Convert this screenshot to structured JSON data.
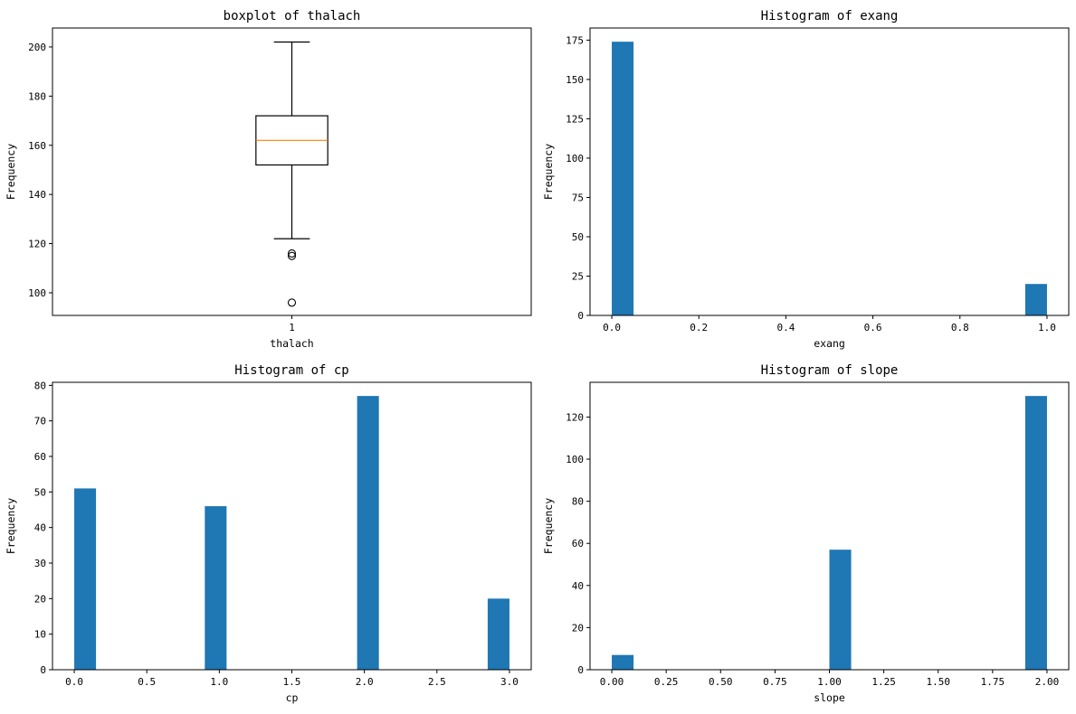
{
  "chart_data": [
    {
      "type": "box",
      "title": "boxplot of thalach",
      "xlabel": "thalach",
      "ylabel": "Frequency",
      "categories": [
        "1"
      ],
      "box": {
        "min": 122,
        "q1": 152,
        "median": 162,
        "q3": 172,
        "max": 202,
        "outliers": [
          116,
          115,
          96
        ]
      },
      "ylim": [
        90.8,
        207.7
      ],
      "yticks": [
        100,
        120,
        140,
        160,
        180,
        200
      ],
      "colors": {
        "box": "#000000",
        "median": "#ff7f0e"
      }
    },
    {
      "type": "bar",
      "title": "Histogram of exang",
      "xlabel": "exang",
      "ylabel": "Frequency",
      "bins": 20,
      "bin_range": [
        0,
        1
      ],
      "x": [
        0,
        1
      ],
      "values": [
        174,
        20
      ],
      "xlim": [
        -0.05,
        1.05
      ],
      "ylim": [
        0,
        182.7
      ],
      "xticks": [
        "0.0",
        "0.2",
        "0.4",
        "0.6",
        "0.8",
        "1.0"
      ],
      "yticks": [
        0,
        25,
        50,
        75,
        100,
        125,
        150,
        175
      ],
      "colors": {
        "bar": "#1f77b4"
      }
    },
    {
      "type": "bar",
      "title": "Histogram of cp",
      "xlabel": "cp",
      "ylabel": "Frequency",
      "bins": 20,
      "bin_range": [
        0,
        3
      ],
      "x": [
        0,
        1,
        2,
        3
      ],
      "values": [
        51,
        46,
        77,
        20
      ],
      "xlim": [
        -0.15,
        3.15
      ],
      "ylim": [
        0,
        80.85
      ],
      "xticks": [
        "0.0",
        "0.5",
        "1.0",
        "1.5",
        "2.0",
        "2.5",
        "3.0"
      ],
      "yticks": [
        0,
        10,
        20,
        30,
        40,
        50,
        60,
        70,
        80
      ],
      "colors": {
        "bar": "#1f77b4"
      }
    },
    {
      "type": "bar",
      "title": "Histogram of slope",
      "xlabel": "slope",
      "ylabel": "Frequency",
      "bins": 20,
      "bin_range": [
        0,
        2
      ],
      "x": [
        0,
        1,
        2
      ],
      "values": [
        7,
        57,
        130
      ],
      "xlim": [
        -0.1,
        2.1
      ],
      "ylim": [
        0,
        136.5
      ],
      "xticks": [
        "0.00",
        "0.25",
        "0.50",
        "0.75",
        "1.00",
        "1.25",
        "1.50",
        "1.75",
        "2.00"
      ],
      "yticks": [
        0,
        20,
        40,
        60,
        80,
        100,
        120
      ],
      "colors": {
        "bar": "#1f77b4"
      }
    }
  ]
}
